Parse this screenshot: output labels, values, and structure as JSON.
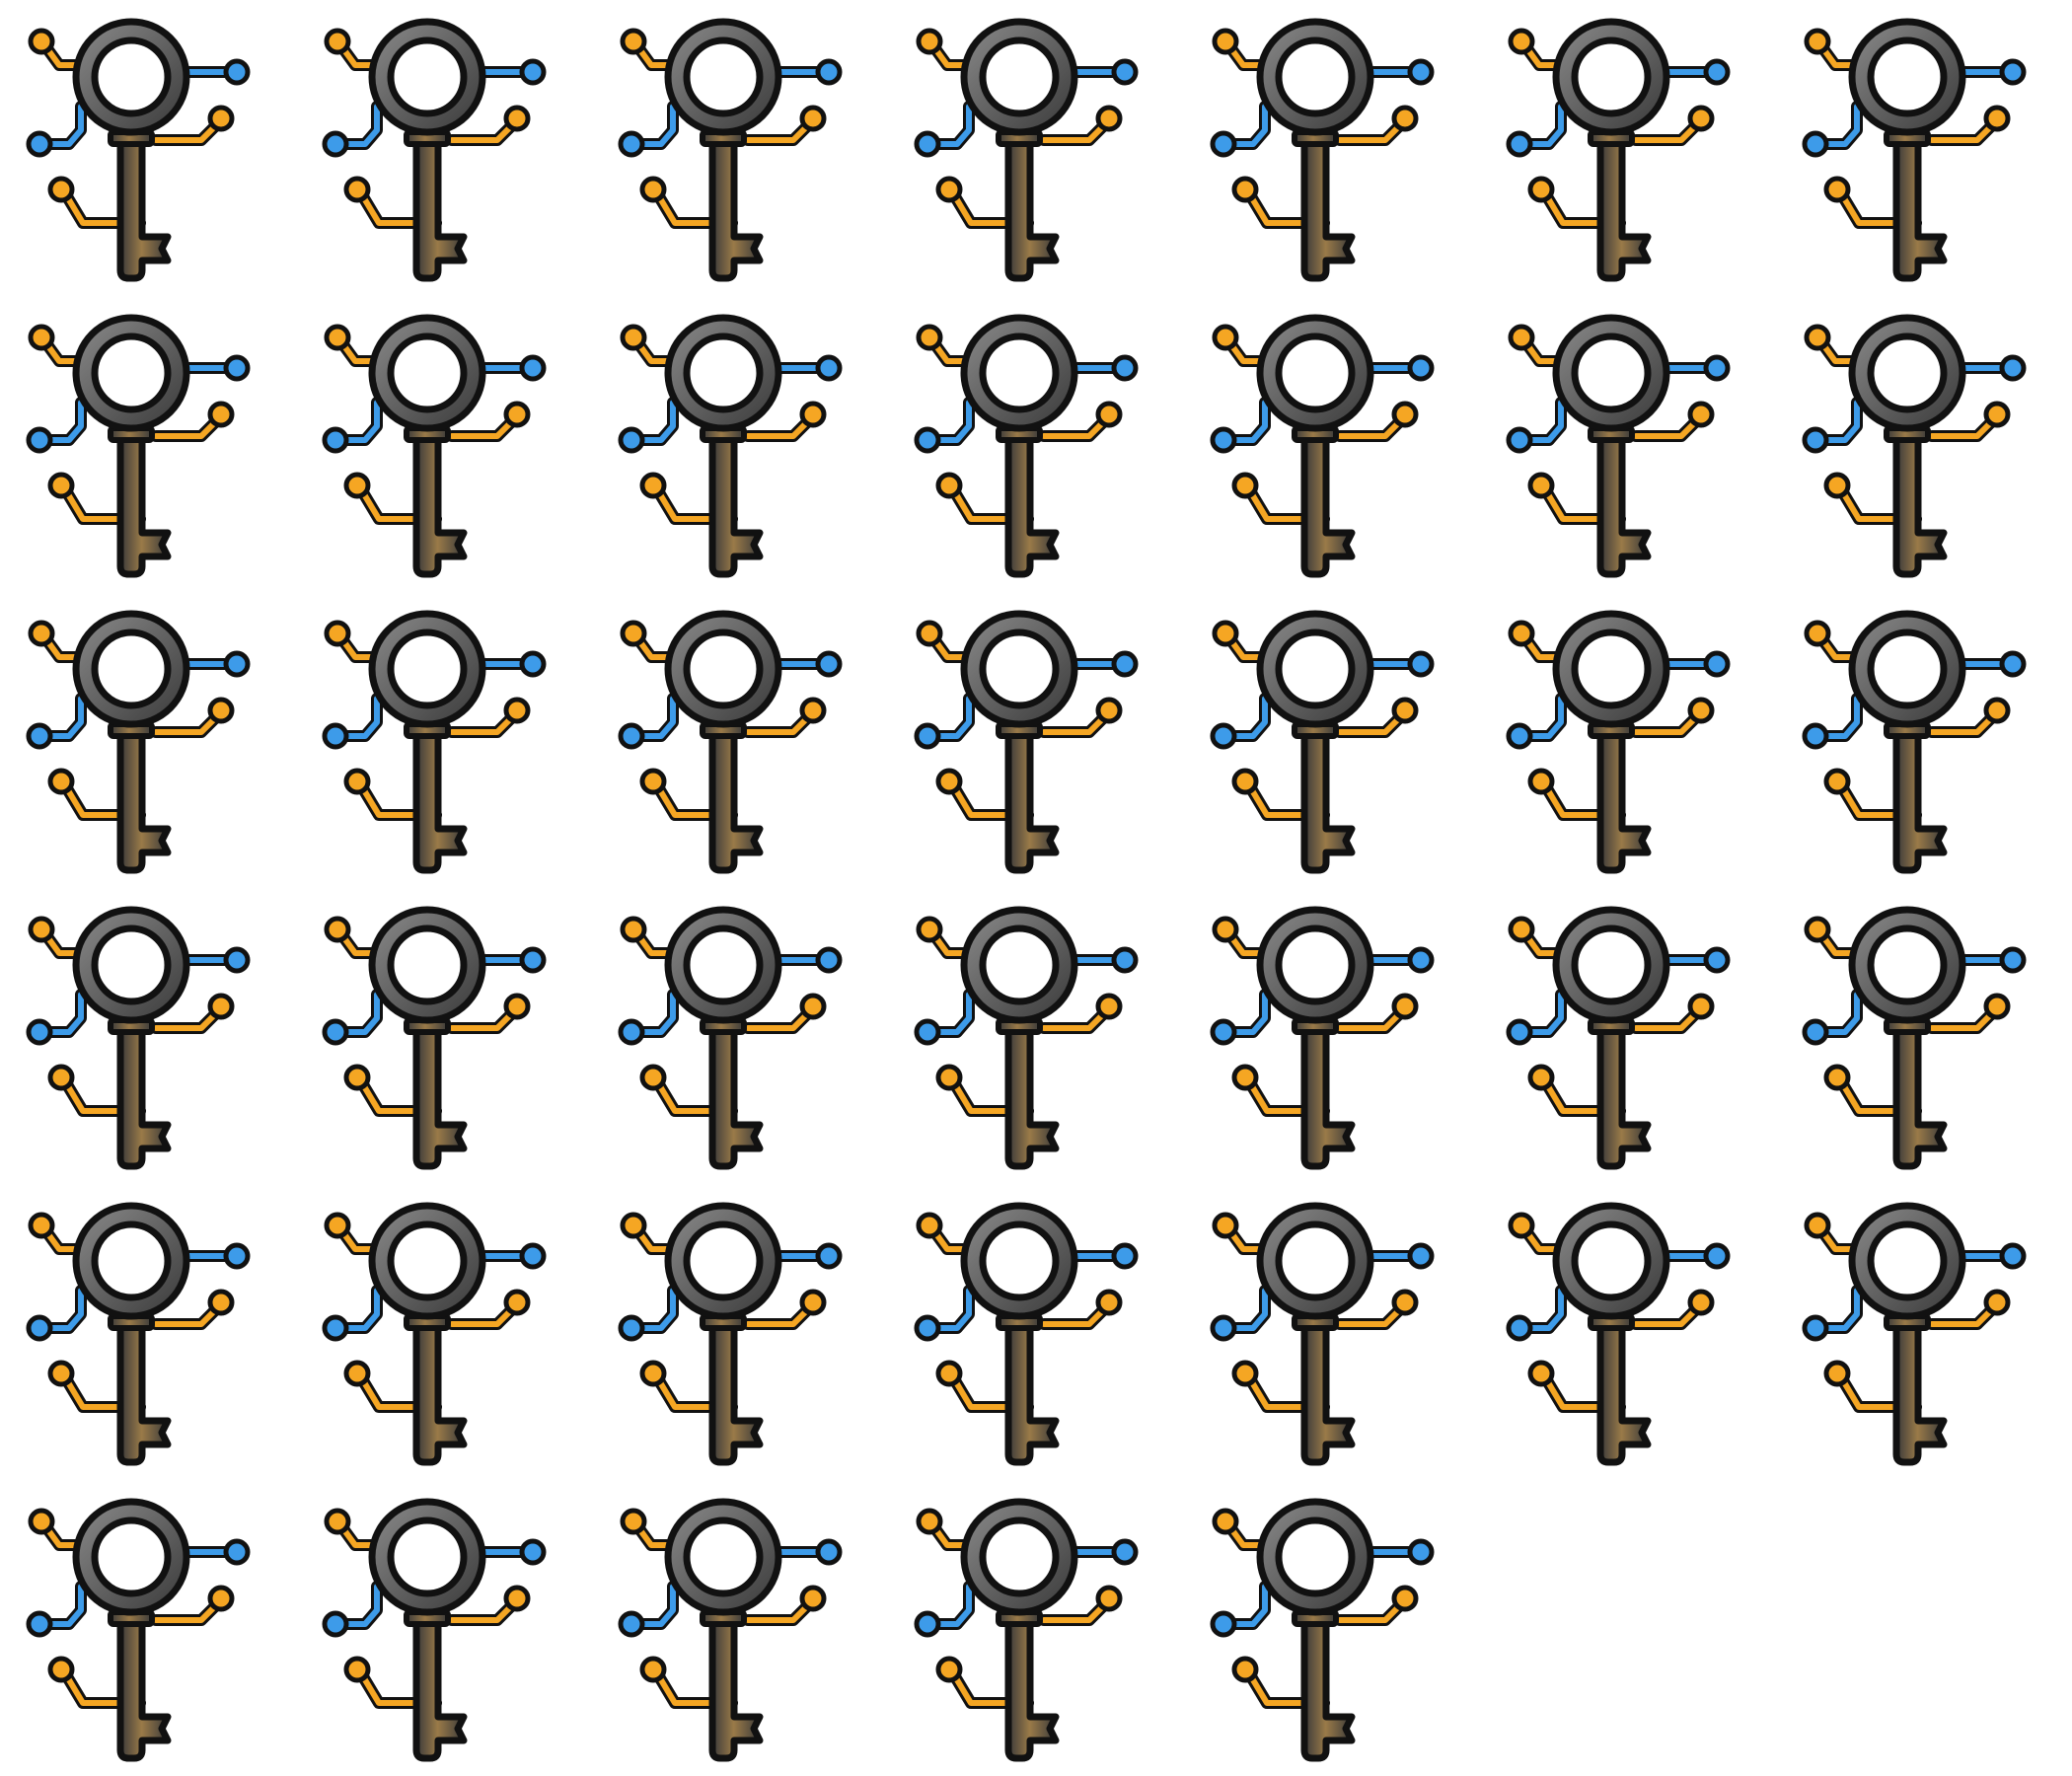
{
  "sheet": {
    "icon_name": "digital-key-icon",
    "icon_count": 40,
    "columns": 7
  },
  "colors": {
    "background": "#ffffff",
    "outline": "#111111",
    "key_light": "#8a8a8a",
    "key_dark": "#3a3a3a",
    "key_accent": "#9a7a48",
    "circuit_orange": "#f5a623",
    "circuit_blue": "#3d9be9",
    "ring_center": "#ffffff"
  }
}
